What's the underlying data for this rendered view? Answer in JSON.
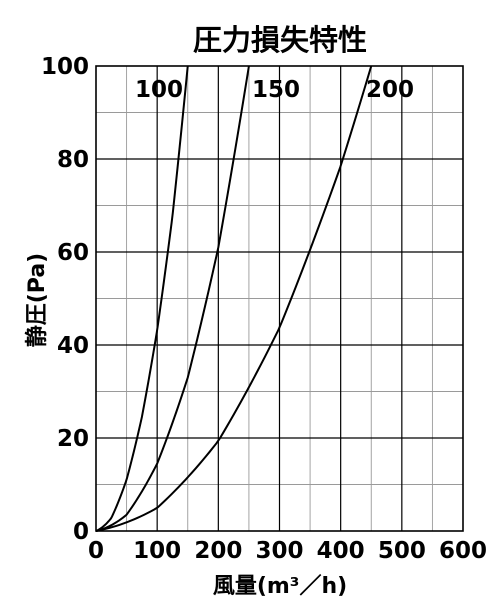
{
  "chart_data": {
    "type": "line",
    "title": "圧力損失特性",
    "xlabel": "風量(m³／h)",
    "ylabel": "静圧(Pa)",
    "xlim": [
      0,
      600
    ],
    "ylim": [
      0,
      100
    ],
    "xticks": [
      "0",
      "100",
      "200",
      "300",
      "400",
      "500",
      "600"
    ],
    "yticks": [
      "0",
      "20",
      "40",
      "60",
      "80",
      "100"
    ],
    "grid": true,
    "series": [
      {
        "name": "100",
        "x": [
          0,
          25,
          50,
          75,
          100,
          125,
          150
        ],
        "y": [
          0,
          2.8,
          11,
          24,
          42,
          66,
          100
        ]
      },
      {
        "name": "150",
        "x": [
          0,
          50,
          100,
          150,
          200,
          250
        ],
        "y": [
          0,
          3,
          13,
          30,
          58,
          100
        ]
      },
      {
        "name": "200",
        "x": [
          0,
          100,
          200,
          300,
          400,
          450
        ],
        "y": [
          0,
          5,
          19,
          43,
          78,
          100
        ]
      }
    ],
    "colors": {
      "line": "#000000",
      "major_grid": "#000000",
      "minor_grid": "#9a9a9a"
    }
  }
}
